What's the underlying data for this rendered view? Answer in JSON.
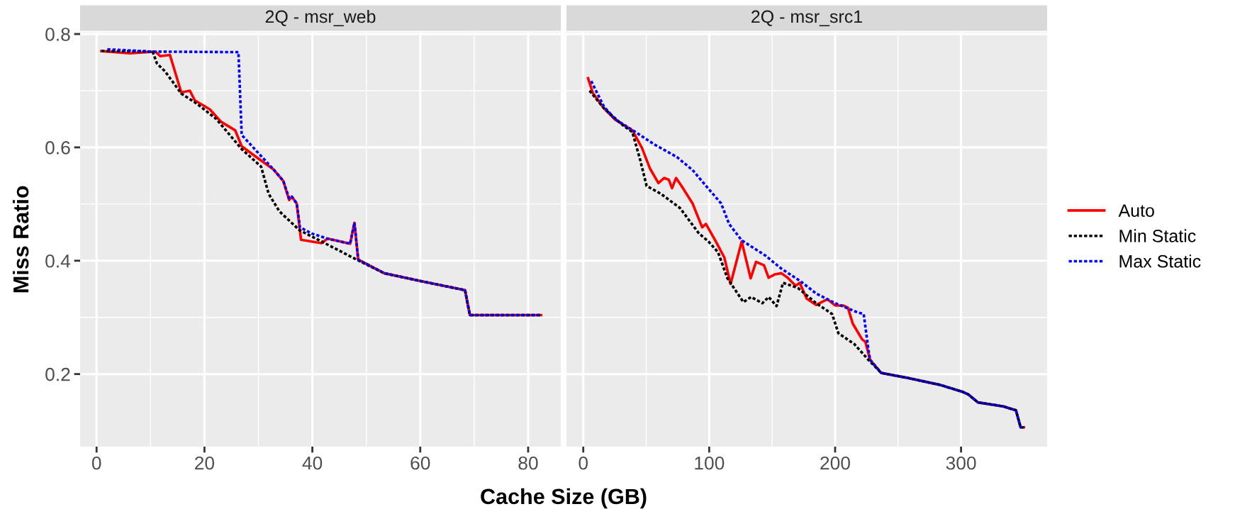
{
  "chart_data": [
    {
      "type": "line",
      "title": "2Q - msr_web",
      "xlabel": "Cache Size (GB)",
      "ylabel": "Miss Ratio",
      "xlim": [
        -3.05,
        86.05
      ],
      "xticks": [
        0,
        20,
        40,
        60,
        80
      ],
      "ylim": [
        0.072,
        0.803
      ],
      "yticks": [
        0.2,
        0.4,
        0.6,
        0.8
      ],
      "grid": true,
      "legend": "right",
      "series": [
        {
          "name": "Auto",
          "color": "#ff0000",
          "line_style": "solid",
          "x": [
            0.9,
            6.2,
            10.9,
            11.8,
            13.6,
            15.7,
            17.3,
            18.2,
            21,
            23.1,
            25.7,
            26.9,
            29.6,
            32.8,
            34.6,
            35.7,
            36.2,
            37.1,
            37.9,
            41.7,
            42.8,
            47.0,
            47.8,
            48.5,
            53.3,
            60.1,
            68.3,
            69.2,
            82.4
          ],
          "values": [
            0.77,
            0.766,
            0.769,
            0.761,
            0.763,
            0.697,
            0.7,
            0.683,
            0.667,
            0.645,
            0.63,
            0.602,
            0.583,
            0.561,
            0.541,
            0.507,
            0.513,
            0.501,
            0.437,
            0.431,
            0.439,
            0.43,
            0.467,
            0.402,
            0.378,
            0.364,
            0.348,
            0.304,
            0.304
          ]
        },
        {
          "name": "Min Static",
          "color": "#000000",
          "line_style": "dotted",
          "x": [
            0.9,
            10.4,
            11.2,
            12.7,
            15.7,
            18.6,
            22.2,
            26.9,
            30.5,
            31.9,
            33.9,
            37.6,
            42.3,
            48.2,
            53.3,
            60.1,
            68.3,
            69.2,
            82.4
          ],
          "values": [
            0.77,
            0.769,
            0.748,
            0.734,
            0.695,
            0.677,
            0.65,
            0.597,
            0.566,
            0.518,
            0.487,
            0.454,
            0.431,
            0.402,
            0.378,
            0.364,
            0.348,
            0.304,
            0.304
          ]
        },
        {
          "name": "Max Static",
          "color": "#0000ff",
          "line_style": "dotted",
          "x": [
            2.0,
            10.4,
            26.3,
            26.9,
            29.6,
            32.8,
            34.6,
            35.7,
            36.2,
            37.1,
            37.7,
            39.9,
            42.8,
            47.0,
            47.8,
            48.5,
            53.3,
            60.1,
            68.3,
            69.2,
            82.4
          ],
          "values": [
            0.773,
            0.769,
            0.768,
            0.622,
            0.594,
            0.561,
            0.541,
            0.51,
            0.513,
            0.501,
            0.459,
            0.448,
            0.439,
            0.43,
            0.467,
            0.402,
            0.378,
            0.364,
            0.348,
            0.304,
            0.304
          ]
        }
      ]
    },
    {
      "type": "line",
      "title": "2Q - msr_src1",
      "xlim": [
        -13.35,
        368.35
      ],
      "xticks": [
        0,
        100,
        200,
        300
      ],
      "ylim": [
        0.072,
        0.803
      ],
      "grid": true,
      "tick_labels": "x",
      "series": [
        {
          "color": "#ff0000",
          "line_style": "solid",
          "x": [
            3.8,
            7.6,
            16.4,
            25.2,
            39,
            46.6,
            52.9,
            59.7,
            64.2,
            67.9,
            70.5,
            73.7,
            78,
            86.8,
            94.4,
            97.4,
            104.5,
            112,
            117,
            125.8,
            132.9,
            137.2,
            143.5,
            147.2,
            152.3,
            157.3,
            162.3,
            168.6,
            171.9,
            177.4,
            185,
            193.8,
            200.1,
            206.4,
            210.2,
            214,
            221.5,
            224,
            227.8,
            236.6,
            258,
            283.2,
            300.8,
            305.8,
            313.4,
            333.5,
            343.6,
            347.3,
            349.9
          ],
          "values": [
            0.722,
            0.696,
            0.669,
            0.649,
            0.63,
            0.599,
            0.563,
            0.537,
            0.546,
            0.543,
            0.528,
            0.546,
            0.532,
            0.501,
            0.459,
            0.465,
            0.437,
            0.406,
            0.359,
            0.434,
            0.369,
            0.398,
            0.392,
            0.37,
            0.376,
            0.378,
            0.37,
            0.356,
            0.361,
            0.333,
            0.322,
            0.332,
            0.321,
            0.321,
            0.317,
            0.289,
            0.261,
            0.257,
            0.225,
            0.202,
            0.193,
            0.181,
            0.169,
            0.164,
            0.15,
            0.143,
            0.136,
            0.106,
            0.106
          ]
        },
        {
          "color": "#000000",
          "line_style": "dotted",
          "x": [
            5,
            16.4,
            31.5,
            39,
            45.3,
            50.3,
            61.7,
            76.8,
            91.9,
            99.4,
            107,
            114.5,
            127.1,
            133.4,
            142.2,
            147.2,
            153.5,
            158.6,
            170.4,
            185,
            197.6,
            202.6,
            215.2,
            226.5,
            236.6,
            258,
            283.2,
            300.8,
            305.8,
            313.4,
            333.5,
            343.6,
            347.3,
            349.9
          ],
          "values": [
            0.7,
            0.669,
            0.639,
            0.627,
            0.577,
            0.532,
            0.518,
            0.493,
            0.448,
            0.434,
            0.415,
            0.369,
            0.327,
            0.336,
            0.325,
            0.336,
            0.32,
            0.361,
            0.352,
            0.325,
            0.306,
            0.272,
            0.253,
            0.225,
            0.202,
            0.193,
            0.181,
            0.169,
            0.164,
            0.15,
            0.143,
            0.136,
            0.106,
            0.106
          ]
        },
        {
          "color": "#0000ff",
          "line_style": "dotted",
          "x": [
            6.3,
            16.4,
            25.2,
            41.5,
            56.6,
            74.3,
            86.8,
            99.4,
            109.5,
            115.8,
            125.8,
            144.7,
            157.3,
            172.4,
            185,
            200.1,
            217.7,
            222.7,
            226.5,
            227.8,
            236.6,
            258,
            283.2,
            300.8,
            305.8,
            313.4,
            333.5,
            343.6,
            347.3,
            349.9
          ],
          "values": [
            0.717,
            0.672,
            0.65,
            0.627,
            0.605,
            0.583,
            0.56,
            0.527,
            0.501,
            0.465,
            0.436,
            0.409,
            0.386,
            0.364,
            0.342,
            0.325,
            0.309,
            0.306,
            0.242,
            0.225,
            0.202,
            0.193,
            0.181,
            0.169,
            0.164,
            0.15,
            0.143,
            0.136,
            0.106,
            0.106
          ]
        }
      ]
    }
  ]
}
